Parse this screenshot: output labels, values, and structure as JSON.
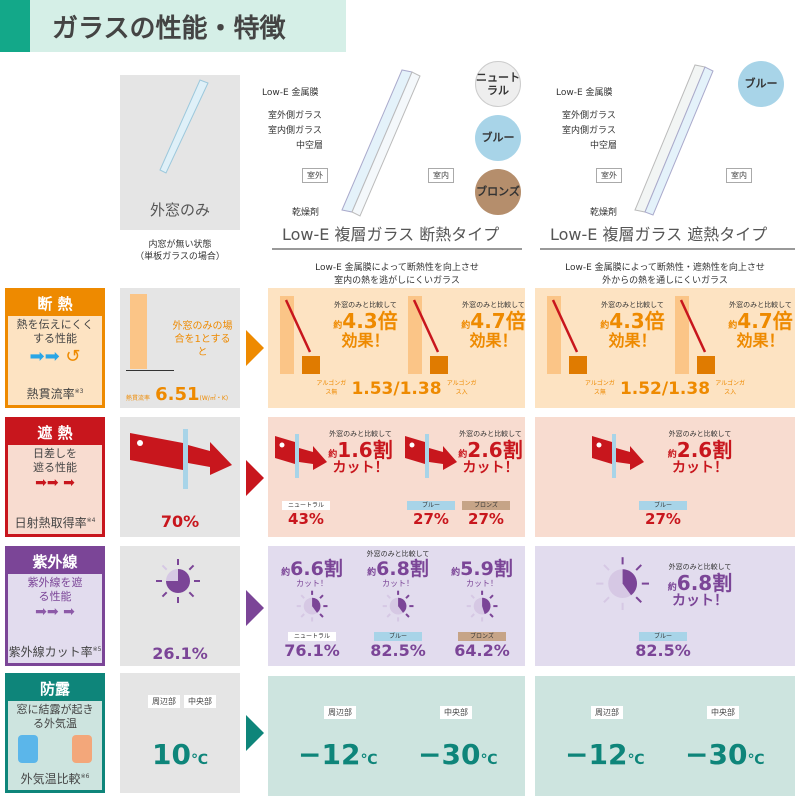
{
  "header": {
    "title": "ガラスの性能・特徴"
  },
  "single": {
    "name": "外窓のみ",
    "note1": "内窓が無い状態",
    "note2": "（単板ガラスの場合）"
  },
  "glass_labels": {
    "lowe": "Low-E 金属膜",
    "outer": "室外側ガラス",
    "inner": "室内側ガラス",
    "hollow": "中空層",
    "outside": "室外",
    "inside": "室内",
    "desiccant": "乾燥剤"
  },
  "types": [
    {
      "title": "Low-E 複層ガラス 断熱タイプ",
      "desc1": "Low-E 金属膜によって断熱性を向上させ",
      "desc2": "室内の熱を逃がしにくいガラス",
      "colors": [
        {
          "label": "ニュートラル",
          "hex": "#eeeeee"
        },
        {
          "label": "ブルー",
          "hex": "#a8d4e8"
        },
        {
          "label": "ブロンズ",
          "hex": "#b58e6c"
        }
      ]
    },
    {
      "title": "Low-E 複層ガラス 遮熱タイプ",
      "desc1": "Low-E 金属膜によって断熱性・遮熱性を向上させ",
      "desc2": "外からの熱を通しにくいガラス",
      "colors": [
        {
          "label": "ブルー",
          "hex": "#a8d4e8"
        }
      ]
    }
  ],
  "compare": "外窓のみと比較して",
  "approx": "約",
  "rows": {
    "insulation": {
      "title": "断 熱",
      "desc": "熱を伝えにくくする性能",
      "metric": "熱貫流率",
      "note": "※3",
      "color": "#ee8a00",
      "bg": "#fde3c2",
      "single_note": "外窓のみの場合を1とすると",
      "single_label": "熱貫流率",
      "single_value": "6.51",
      "unit": "(W/㎡・K)",
      "t1": {
        "a": "4.3倍",
        "b": "4.7倍",
        "effect": "効果！",
        "mid": "熱貫流率",
        "value": "1.53/1.38",
        "left": "アルゴンガス無",
        "right": "アルゴンガス入"
      },
      "t2": {
        "a": "4.3倍",
        "b": "4.7倍",
        "effect": "効果！",
        "value": "1.52/1.38",
        "left": "アルゴンガス無",
        "right": "アルゴンガス入"
      }
    },
    "solar": {
      "title": "遮 熱",
      "desc": "日差しを遮る性能",
      "metric": "日射熱取得率",
      "note": "※4",
      "color": "#c8161d",
      "bg": "#f8dcd0",
      "single_value": "70%",
      "t1": [
        {
          "cut": "1.6割",
          "label": "ニュートラル",
          "value": "43%"
        },
        {
          "cut": "2.6割",
          "label": "ブルー",
          "value": "27%"
        },
        {
          "label": "ブロンズ",
          "value": "27%"
        }
      ],
      "t2": {
        "cut": "2.6割",
        "label": "ブルー",
        "value": "27%"
      },
      "cut_suffix": "カット！"
    },
    "uv": {
      "title": "紫外線",
      "desc": "紫外線を遮る性能",
      "metric": "紫外線カット率",
      "note": "※5",
      "color": "#7b4597",
      "bg": "#e2dcee",
      "single_value": "26.1%",
      "t1": [
        {
          "cut": "6.6割",
          "label": "ニュートラル",
          "value": "76.1%"
        },
        {
          "cut": "6.8割",
          "label": "ブルー",
          "value": "82.5%"
        },
        {
          "cut": "5.9割",
          "label": "ブロンズ",
          "value": "64.2%"
        }
      ],
      "t2": {
        "cut": "6.8割",
        "label": "ブルー",
        "value": "82.5%"
      },
      "cut_suffix": "カット！"
    },
    "condensation": {
      "title": "防露",
      "desc": "窓に結露が起きる外気温",
      "metric": "外気温比較",
      "note": "※6",
      "color": "#0e857a",
      "bg": "#cde4df",
      "edge": "周辺部",
      "center": "中央部",
      "single_value": "10",
      "t1": {
        "edge": "−12",
        "center": "−30"
      },
      "t2": {
        "edge": "−12",
        "center": "−30"
      },
      "unit": "℃"
    }
  }
}
